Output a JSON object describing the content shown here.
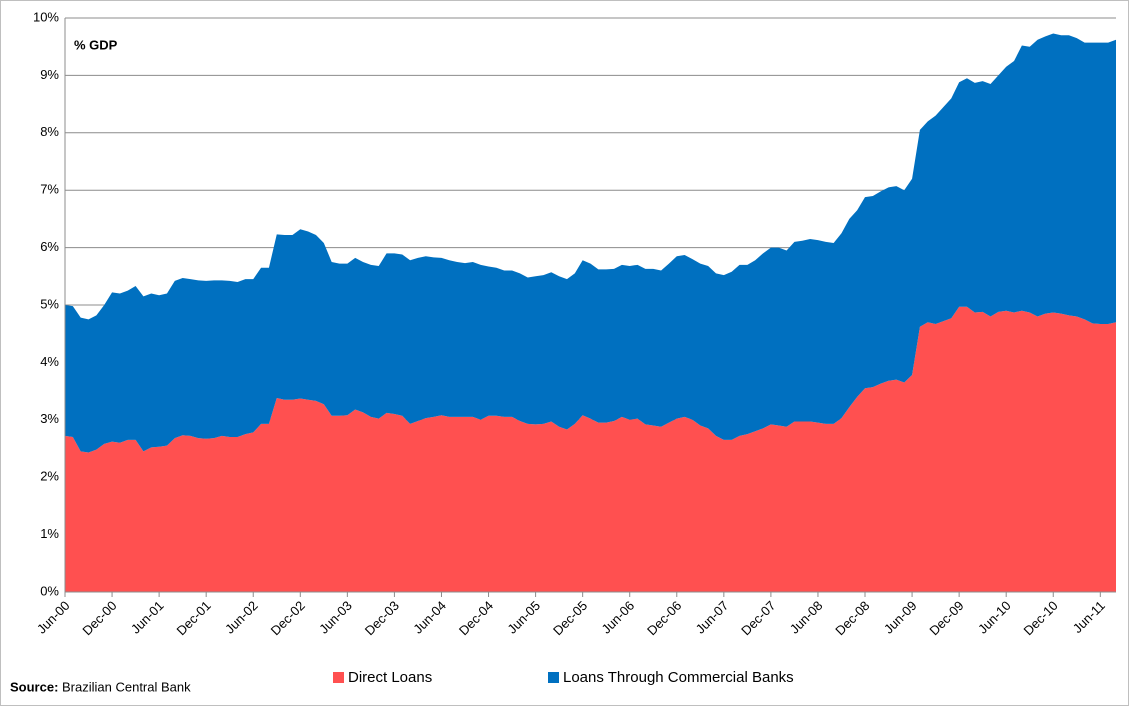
{
  "chart_data": {
    "type": "stacked_area",
    "y_unit_label": "% GDP",
    "source_label": "Source:",
    "source": "Brazilian Central Bank",
    "categories": [
      "Jun-00",
      null,
      null,
      null,
      null,
      null,
      "Dec-00",
      null,
      null,
      null,
      null,
      null,
      "Jun-01",
      null,
      null,
      null,
      null,
      null,
      "Dec-01",
      null,
      null,
      null,
      null,
      null,
      "Jun-02",
      null,
      null,
      null,
      null,
      null,
      "Dec-02",
      null,
      null,
      null,
      null,
      null,
      "Jun-03",
      null,
      null,
      null,
      null,
      null,
      "Dec-03",
      null,
      null,
      null,
      null,
      null,
      "Jun-04",
      null,
      null,
      null,
      null,
      null,
      "Dec-04",
      null,
      null,
      null,
      null,
      null,
      "Jun-05",
      null,
      null,
      null,
      null,
      null,
      "Dec-05",
      null,
      null,
      null,
      null,
      null,
      "Jun-06",
      null,
      null,
      null,
      null,
      null,
      "Dec-06",
      null,
      null,
      null,
      null,
      null,
      "Jun-07",
      null,
      null,
      null,
      null,
      null,
      "Dec-07",
      null,
      null,
      null,
      null,
      null,
      "Jun-08",
      null,
      null,
      null,
      null,
      null,
      "Dec-08",
      null,
      null,
      null,
      null,
      null,
      "Jun-09",
      null,
      null,
      null,
      null,
      null,
      "Dec-09",
      null,
      null,
      null,
      null,
      null,
      "Jun-10",
      null,
      null,
      null,
      null,
      null,
      "Dec-10",
      null,
      null,
      null,
      null,
      null,
      "Jun-11",
      null,
      null
    ],
    "series": [
      {
        "name": "Direct Loans",
        "color": "#ff5050",
        "values": [
          2.72,
          2.7,
          2.45,
          2.43,
          2.48,
          2.58,
          2.62,
          2.6,
          2.65,
          2.65,
          2.45,
          2.52,
          2.53,
          2.55,
          2.68,
          2.73,
          2.72,
          2.68,
          2.67,
          2.68,
          2.72,
          2.7,
          2.7,
          2.75,
          2.78,
          2.93,
          2.93,
          3.38,
          3.35,
          3.35,
          3.37,
          3.35,
          3.33,
          3.27,
          3.07,
          3.07,
          3.08,
          3.18,
          3.13,
          3.05,
          3.02,
          3.12,
          3.1,
          3.07,
          2.93,
          2.98,
          3.03,
          3.05,
          3.08,
          3.05,
          3.05,
          3.05,
          3.05,
          3.0,
          3.07,
          3.07,
          3.05,
          3.05,
          2.98,
          2.93,
          2.92,
          2.93,
          2.97,
          2.88,
          2.83,
          2.93,
          3.08,
          3.02,
          2.95,
          2.95,
          2.98,
          3.05,
          3.0,
          3.02,
          2.92,
          2.9,
          2.88,
          2.95,
          3.02,
          3.05,
          3.0,
          2.9,
          2.85,
          2.72,
          2.65,
          2.65,
          2.72,
          2.75,
          2.8,
          2.85,
          2.92,
          2.9,
          2.88,
          2.97,
          2.97,
          2.97,
          2.95,
          2.93,
          2.93,
          3.03,
          3.22,
          3.4,
          3.55,
          3.57,
          3.63,
          3.68,
          3.7,
          3.65,
          3.78,
          4.62,
          4.7,
          4.67,
          4.72,
          4.77,
          4.97,
          4.97,
          4.87,
          4.88,
          4.8,
          4.88,
          4.9,
          4.87,
          4.9,
          4.87,
          4.8,
          4.85,
          4.87,
          4.85,
          4.82,
          4.8,
          4.75,
          4.68,
          4.67,
          4.67,
          4.7
        ]
      },
      {
        "name": "Loans Through Commercial Banks",
        "color": "#0070c0",
        "values": [
          2.28,
          2.28,
          2.33,
          2.32,
          2.34,
          2.42,
          2.6,
          2.6,
          2.6,
          2.68,
          2.7,
          2.68,
          2.64,
          2.65,
          2.74,
          2.74,
          2.73,
          2.75,
          2.75,
          2.75,
          2.71,
          2.72,
          2.7,
          2.7,
          2.67,
          2.72,
          2.72,
          2.85,
          2.87,
          2.87,
          2.95,
          2.93,
          2.89,
          2.81,
          2.68,
          2.65,
          2.64,
          2.64,
          2.62,
          2.65,
          2.66,
          2.78,
          2.8,
          2.81,
          2.85,
          2.84,
          2.82,
          2.78,
          2.74,
          2.73,
          2.7,
          2.68,
          2.7,
          2.7,
          2.6,
          2.58,
          2.55,
          2.55,
          2.57,
          2.55,
          2.58,
          2.59,
          2.6,
          2.62,
          2.62,
          2.62,
          2.7,
          2.7,
          2.67,
          2.67,
          2.65,
          2.65,
          2.68,
          2.68,
          2.71,
          2.73,
          2.72,
          2.77,
          2.83,
          2.82,
          2.8,
          2.82,
          2.83,
          2.83,
          2.87,
          2.93,
          2.98,
          2.95,
          2.98,
          3.05,
          3.08,
          3.1,
          3.07,
          3.13,
          3.15,
          3.18,
          3.18,
          3.17,
          3.15,
          3.22,
          3.28,
          3.25,
          3.33,
          3.33,
          3.35,
          3.37,
          3.37,
          3.35,
          3.42,
          3.43,
          3.5,
          3.63,
          3.73,
          3.83,
          3.91,
          3.98,
          4.0,
          4.02,
          4.05,
          4.12,
          4.25,
          4.38,
          4.62,
          4.63,
          4.82,
          4.83,
          4.86,
          4.85,
          4.88,
          4.85,
          4.82,
          4.89,
          4.9,
          4.9,
          4.92
        ]
      }
    ],
    "ylim": [
      0,
      10
    ],
    "yticks": [
      {
        "value": 0,
        "label": "0%"
      },
      {
        "value": 1,
        "label": "1%"
      },
      {
        "value": 2,
        "label": "2%"
      },
      {
        "value": 3,
        "label": "3%"
      },
      {
        "value": 4,
        "label": "4%"
      },
      {
        "value": 5,
        "label": "5%"
      },
      {
        "value": 6,
        "label": "6%"
      },
      {
        "value": 7,
        "label": "7%"
      },
      {
        "value": 8,
        "label": "8%"
      },
      {
        "value": 9,
        "label": "9%"
      },
      {
        "value": 10,
        "label": "10%"
      }
    ],
    "grid": true,
    "legend": "bottom"
  }
}
